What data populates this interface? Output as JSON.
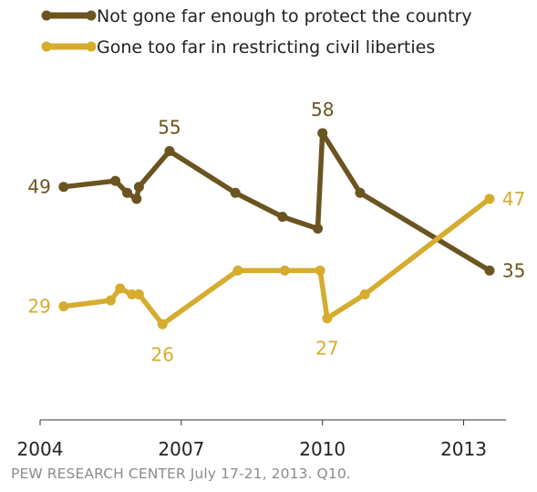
{
  "chart_data": {
    "type": "line",
    "title": "",
    "xlabel": "",
    "ylabel": "",
    "x_ticks": [
      "2004",
      "2007",
      "2010",
      "2013"
    ],
    "ylim": [
      10,
      65
    ],
    "xlim": [
      2004.0,
      2013.9
    ],
    "grid": false,
    "legend_position": "top-left",
    "series": [
      {
        "name": "Not gone far enough to protect the country",
        "color": "#6b5420",
        "points": [
          {
            "x": 2004.5,
            "y": 49,
            "label": "49"
          },
          {
            "x": 2005.6,
            "y": 50
          },
          {
            "x": 2005.85,
            "y": 48
          },
          {
            "x": 2006.05,
            "y": 47
          },
          {
            "x": 2006.1,
            "y": 49
          },
          {
            "x": 2006.75,
            "y": 55,
            "label": "55"
          },
          {
            "x": 2008.15,
            "y": 48
          },
          {
            "x": 2009.15,
            "y": 44
          },
          {
            "x": 2009.9,
            "y": 42
          },
          {
            "x": 2010.0,
            "y": 58,
            "label": "58"
          },
          {
            "x": 2010.8,
            "y": 48
          },
          {
            "x": 2013.55,
            "y": 35,
            "label": "35"
          }
        ]
      },
      {
        "name": "Gone too far in restricting civil liberties",
        "color": "#d6ac2e",
        "points": [
          {
            "x": 2004.5,
            "y": 29,
            "label": "29"
          },
          {
            "x": 2005.5,
            "y": 30
          },
          {
            "x": 2005.7,
            "y": 32
          },
          {
            "x": 2005.95,
            "y": 31
          },
          {
            "x": 2006.1,
            "y": 31
          },
          {
            "x": 2006.6,
            "y": 26,
            "label": "26"
          },
          {
            "x": 2008.2,
            "y": 35
          },
          {
            "x": 2009.2,
            "y": 35
          },
          {
            "x": 2009.95,
            "y": 35
          },
          {
            "x": 2010.1,
            "y": 27,
            "label": "27"
          },
          {
            "x": 2010.9,
            "y": 31
          },
          {
            "x": 2013.55,
            "y": 47,
            "label": "47"
          }
        ]
      }
    ]
  },
  "footer": {
    "source": "PEW RESEARCH CENTER July 17-21, 2013. Q10."
  }
}
